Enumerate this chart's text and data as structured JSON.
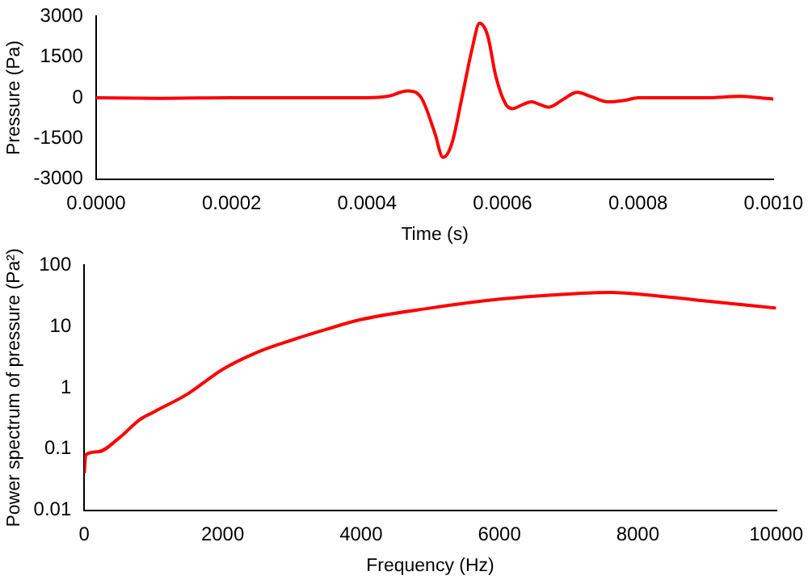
{
  "chart_data": [
    {
      "type": "line",
      "xlabel": "Time (s)",
      "ylabel": "Pressure (Pa)",
      "xlim": [
        0,
        0.001
      ],
      "ylim": [
        -3000,
        3000
      ],
      "xticks": [
        {
          "value": 0,
          "label": "0.0000"
        },
        {
          "value": 0.0002,
          "label": "0.0002"
        },
        {
          "value": 0.0004,
          "label": "0.0004"
        },
        {
          "value": 0.0006,
          "label": "0.0006"
        },
        {
          "value": 0.0008,
          "label": "0.0008"
        },
        {
          "value": 0.001,
          "label": "0.0010"
        }
      ],
      "yticks": [
        -3000,
        -1500,
        0,
        1500,
        3000
      ],
      "grid": false,
      "legend": false,
      "marker": "none",
      "line_style": "solid",
      "series": [
        {
          "color": "#ff0000",
          "x": [
            0,
            0.0001,
            0.0002,
            0.0003,
            0.0004,
            0.00043,
            0.00046,
            0.00048,
            0.0005,
            0.000512,
            0.000525,
            0.00054,
            0.000555,
            0.000566,
            0.000578,
            0.00059,
            0.000605,
            0.000615,
            0.00063,
            0.000643,
            0.000655,
            0.000668,
            0.00069,
            0.00071,
            0.00073,
            0.000755,
            0.00078,
            0.0008,
            0.00085,
            0.0009,
            0.00095,
            0.00098,
            0.001
          ],
          "values": [
            0,
            -20,
            0,
            0,
            0,
            50,
            250,
            0,
            -1300,
            -2200,
            -1700,
            0,
            1800,
            2750,
            2300,
            800,
            -250,
            -400,
            -250,
            -150,
            -250,
            -350,
            -50,
            200,
            50,
            -150,
            -100,
            0,
            0,
            0,
            50,
            0,
            -50
          ]
        }
      ]
    },
    {
      "type": "line",
      "xlabel": "Frequency (Hz)",
      "ylabel": "Power spectrum of pressure (Pa²)",
      "xlim": [
        0,
        10000
      ],
      "ylim": [
        0.01,
        100
      ],
      "log": "y",
      "xticks": [
        0,
        2000,
        4000,
        6000,
        8000,
        10000
      ],
      "yticks": [
        0.01,
        0.1,
        1,
        10,
        100
      ],
      "grid": false,
      "legend": false,
      "marker": "none",
      "line_style": "solid",
      "series": [
        {
          "color": "#ff0000",
          "x": [
            0,
            20,
            200,
            500,
            800,
            1000,
            1500,
            2000,
            2500,
            3000,
            3500,
            4000,
            5000,
            6000,
            7000,
            7600,
            8000,
            9000,
            10000
          ],
          "values": [
            0.04,
            0.08,
            0.09,
            0.15,
            0.3,
            0.4,
            0.8,
            2,
            3.8,
            6,
            9,
            13,
            20,
            28,
            34,
            36,
            34,
            26,
            20
          ]
        }
      ]
    }
  ]
}
